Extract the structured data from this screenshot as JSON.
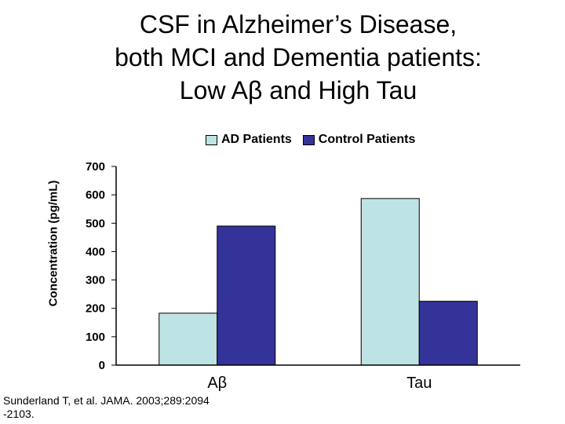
{
  "slide": {
    "title_lines": [
      "CSF in Alzheimer’s Disease,",
      "both MCI and Dementia patients:",
      "Low Aβ and High Tau"
    ],
    "source_lines": [
      " Sunderland T, et al. JAMA. 2003;289:2094",
      "-2103."
    ]
  },
  "chart_data": {
    "type": "bar",
    "title": "",
    "xlabel": "",
    "ylabel": "Concentration (pg/mL)",
    "categories": [
      "Aβ",
      "Tau"
    ],
    "series": [
      {
        "name": "AD Patients",
        "values": [
          183,
          587
        ],
        "color": "#BDE3E5"
      },
      {
        "name": "Control Patients",
        "values": [
          490,
          225
        ],
        "color": "#333399"
      }
    ],
    "ylim": [
      0,
      700
    ],
    "yticks": [
      0,
      100,
      200,
      300,
      400,
      500,
      600,
      700
    ],
    "legend_position": "top",
    "grid": false
  }
}
